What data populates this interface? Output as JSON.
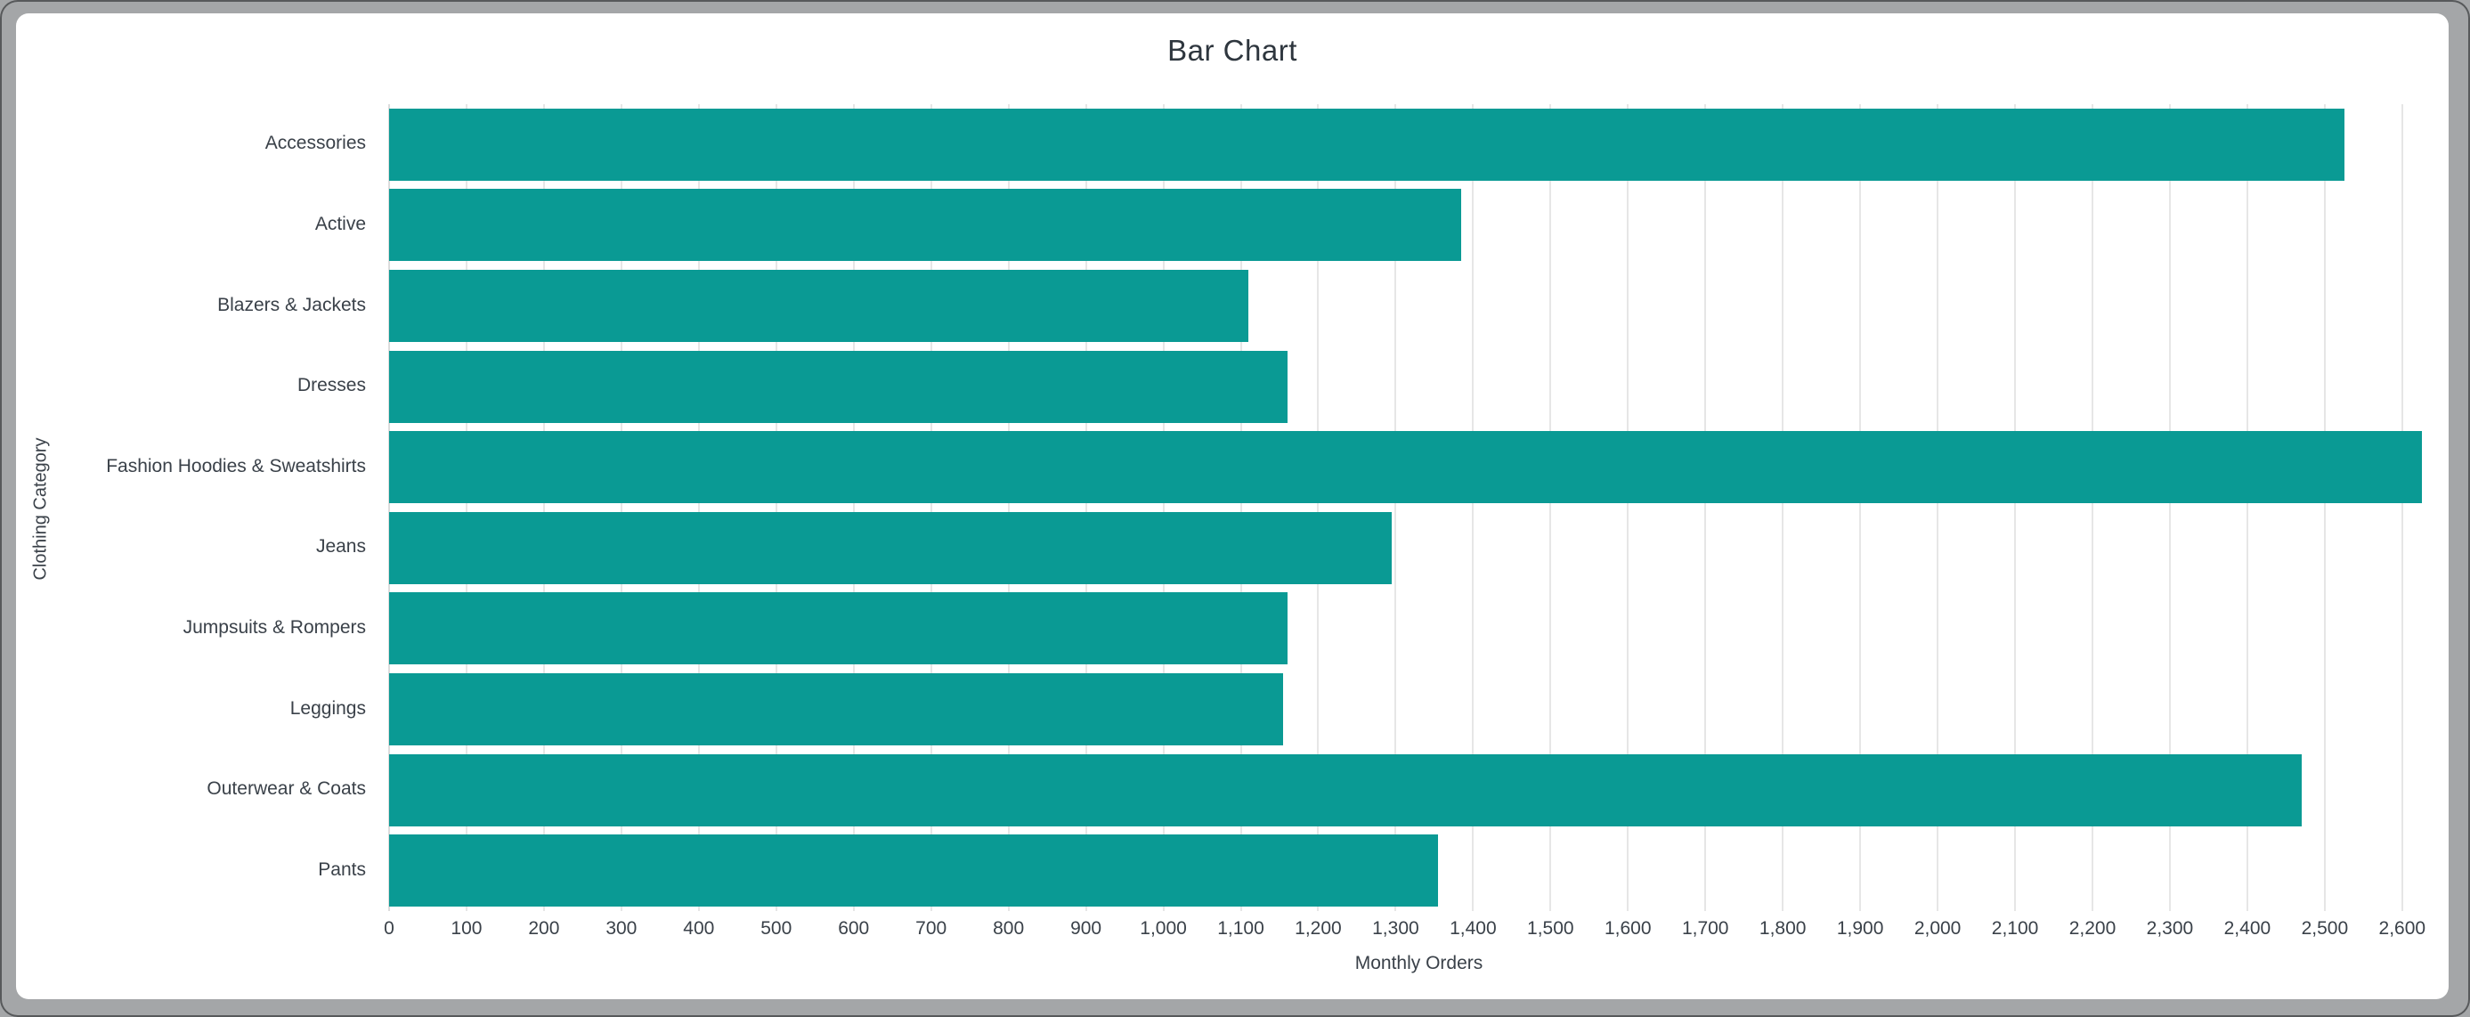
{
  "frame": {
    "background_color": "#a4a6a8",
    "card_color": "#ffffff"
  },
  "chart_data": {
    "type": "bar",
    "orientation": "horizontal",
    "title": "Bar Chart",
    "xlabel": "Monthly Orders",
    "ylabel": "Clothing Category",
    "categories": [
      "Accessories",
      "Active",
      "Blazers & Jackets",
      "Dresses",
      "Fashion Hoodies & Sweatshirts",
      "Jeans",
      "Jumpsuits & Rompers",
      "Leggings",
      "Outerwear & Coats",
      "Pants"
    ],
    "values": [
      2525,
      1385,
      1110,
      1160,
      2625,
      1295,
      1160,
      1155,
      2470,
      1355
    ],
    "xlim": [
      0,
      2660
    ],
    "xtick_step": 100,
    "xtick_labels": [
      "0",
      "100",
      "200",
      "300",
      "400",
      "500",
      "600",
      "700",
      "800",
      "900",
      "1,000",
      "1,100",
      "1,200",
      "1,300",
      "1,400",
      "1,500",
      "1,600",
      "1,700",
      "1,800",
      "1,900",
      "2,000",
      "2,100",
      "2,200",
      "2,300",
      "2,400",
      "2,500",
      "2,600"
    ],
    "grid": true,
    "legend": "none",
    "bar_color": "#0a9a94",
    "grid_color": "#e6e6e6",
    "text_color": "#3a4149",
    "title_color": "#2e363e"
  }
}
